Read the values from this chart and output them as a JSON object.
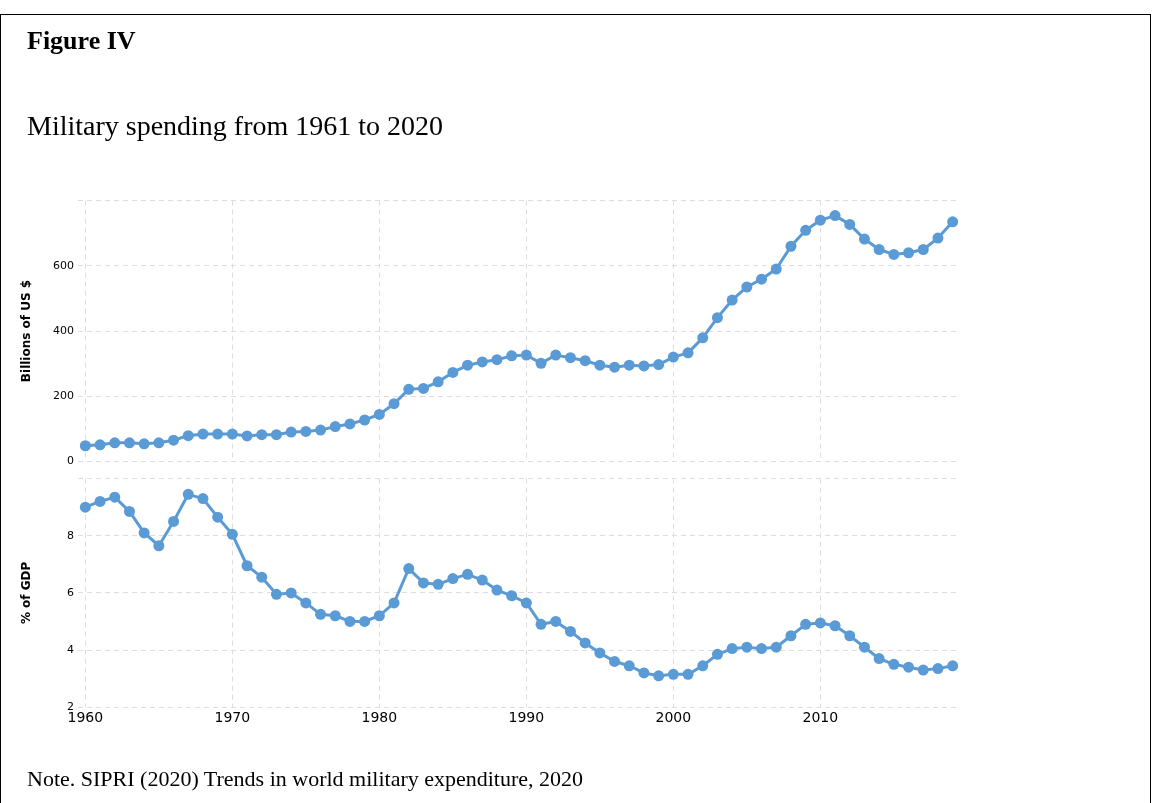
{
  "chart_data": [
    {
      "type": "line",
      "title": "Figure IV",
      "subtitle": "Military spending from 1961 to 2020",
      "ylabel": "Billions of US $",
      "x": [
        1960,
        1961,
        1962,
        1963,
        1964,
        1965,
        1966,
        1967,
        1968,
        1969,
        1970,
        1971,
        1972,
        1973,
        1974,
        1975,
        1976,
        1977,
        1978,
        1979,
        1980,
        1981,
        1982,
        1983,
        1984,
        1985,
        1986,
        1987,
        1988,
        1989,
        1990,
        1991,
        1992,
        1993,
        1994,
        1995,
        1996,
        1997,
        1998,
        1999,
        2000,
        2001,
        2002,
        2003,
        2004,
        2005,
        2006,
        2007,
        2008,
        2009,
        2010,
        2011,
        2012,
        2013,
        2014,
        2015,
        2016,
        2017,
        2018,
        2019
      ],
      "series": [
        {
          "color": "#5b9bd5",
          "values": [
            48,
            51,
            57,
            57,
            54,
            57,
            65,
            79,
            84,
            84,
            84,
            78,
            82,
            82,
            90,
            92,
            96,
            107,
            115,
            127,
            144,
            177,
            221,
            224,
            244,
            273,
            295,
            305,
            312,
            324,
            326,
            301,
            326,
            318,
            309,
            295,
            289,
            295,
            293,
            297,
            320,
            333,
            379,
            441,
            495,
            535,
            559,
            590,
            660,
            709,
            740,
            754,
            727,
            682,
            650,
            635,
            640,
            650,
            685,
            735
          ]
        }
      ],
      "xlim": [
        1959.5,
        2019.5
      ],
      "xticks": [
        1960,
        1970,
        1980,
        1990,
        2000,
        2010
      ],
      "ylim": [
        0,
        800
      ],
      "yticks": [
        0,
        200,
        400,
        600,
        {
          "value": 800,
          "label": null
        }
      ],
      "tick_labels": "y",
      "grid": true,
      "marker": "circle",
      "line_style": "solid"
    },
    {
      "type": "line",
      "ylabel": "% of GDP",
      "x": [
        1960,
        1961,
        1962,
        1963,
        1964,
        1965,
        1966,
        1967,
        1968,
        1969,
        1970,
        1971,
        1972,
        1973,
        1974,
        1975,
        1976,
        1977,
        1978,
        1979,
        1980,
        1981,
        1982,
        1983,
        1984,
        1985,
        1986,
        1987,
        1988,
        1989,
        1990,
        1991,
        1992,
        1993,
        1994,
        1995,
        1996,
        1997,
        1998,
        1999,
        2000,
        2001,
        2002,
        2003,
        2004,
        2005,
        2006,
        2007,
        2008,
        2009,
        2010,
        2011,
        2012,
        2013,
        2014,
        2015,
        2016,
        2017,
        2018,
        2019
      ],
      "series": [
        {
          "color": "#5b9bd5",
          "values": [
            9.0,
            9.2,
            9.35,
            8.85,
            8.1,
            7.65,
            8.5,
            9.45,
            9.3,
            8.65,
            8.05,
            6.95,
            6.55,
            5.95,
            6.0,
            5.65,
            5.25,
            5.2,
            5.0,
            5.0,
            5.2,
            5.65,
            6.85,
            6.35,
            6.3,
            6.5,
            6.65,
            6.45,
            6.1,
            5.9,
            5.65,
            4.9,
            5.0,
            4.65,
            4.25,
            3.9,
            3.6,
            3.45,
            3.2,
            3.1,
            3.15,
            3.15,
            3.45,
            3.85,
            4.05,
            4.1,
            4.05,
            4.1,
            4.5,
            4.9,
            4.95,
            4.85,
            4.5,
            4.1,
            3.7,
            3.5,
            3.4,
            3.3,
            3.35,
            3.45
          ]
        }
      ],
      "xlim": [
        1959.5,
        2019.5
      ],
      "xticks": [
        1960,
        1970,
        1980,
        1990,
        2000,
        2010
      ],
      "ylim": [
        2,
        10
      ],
      "yticks": [
        2,
        4,
        6,
        8,
        {
          "value": 10,
          "label": null
        }
      ],
      "grid": true,
      "marker": "circle",
      "line_style": "solid",
      "annotations": [
        "Note. SIPRI (2020) Trends in world military expenditure, 2020"
      ]
    }
  ]
}
